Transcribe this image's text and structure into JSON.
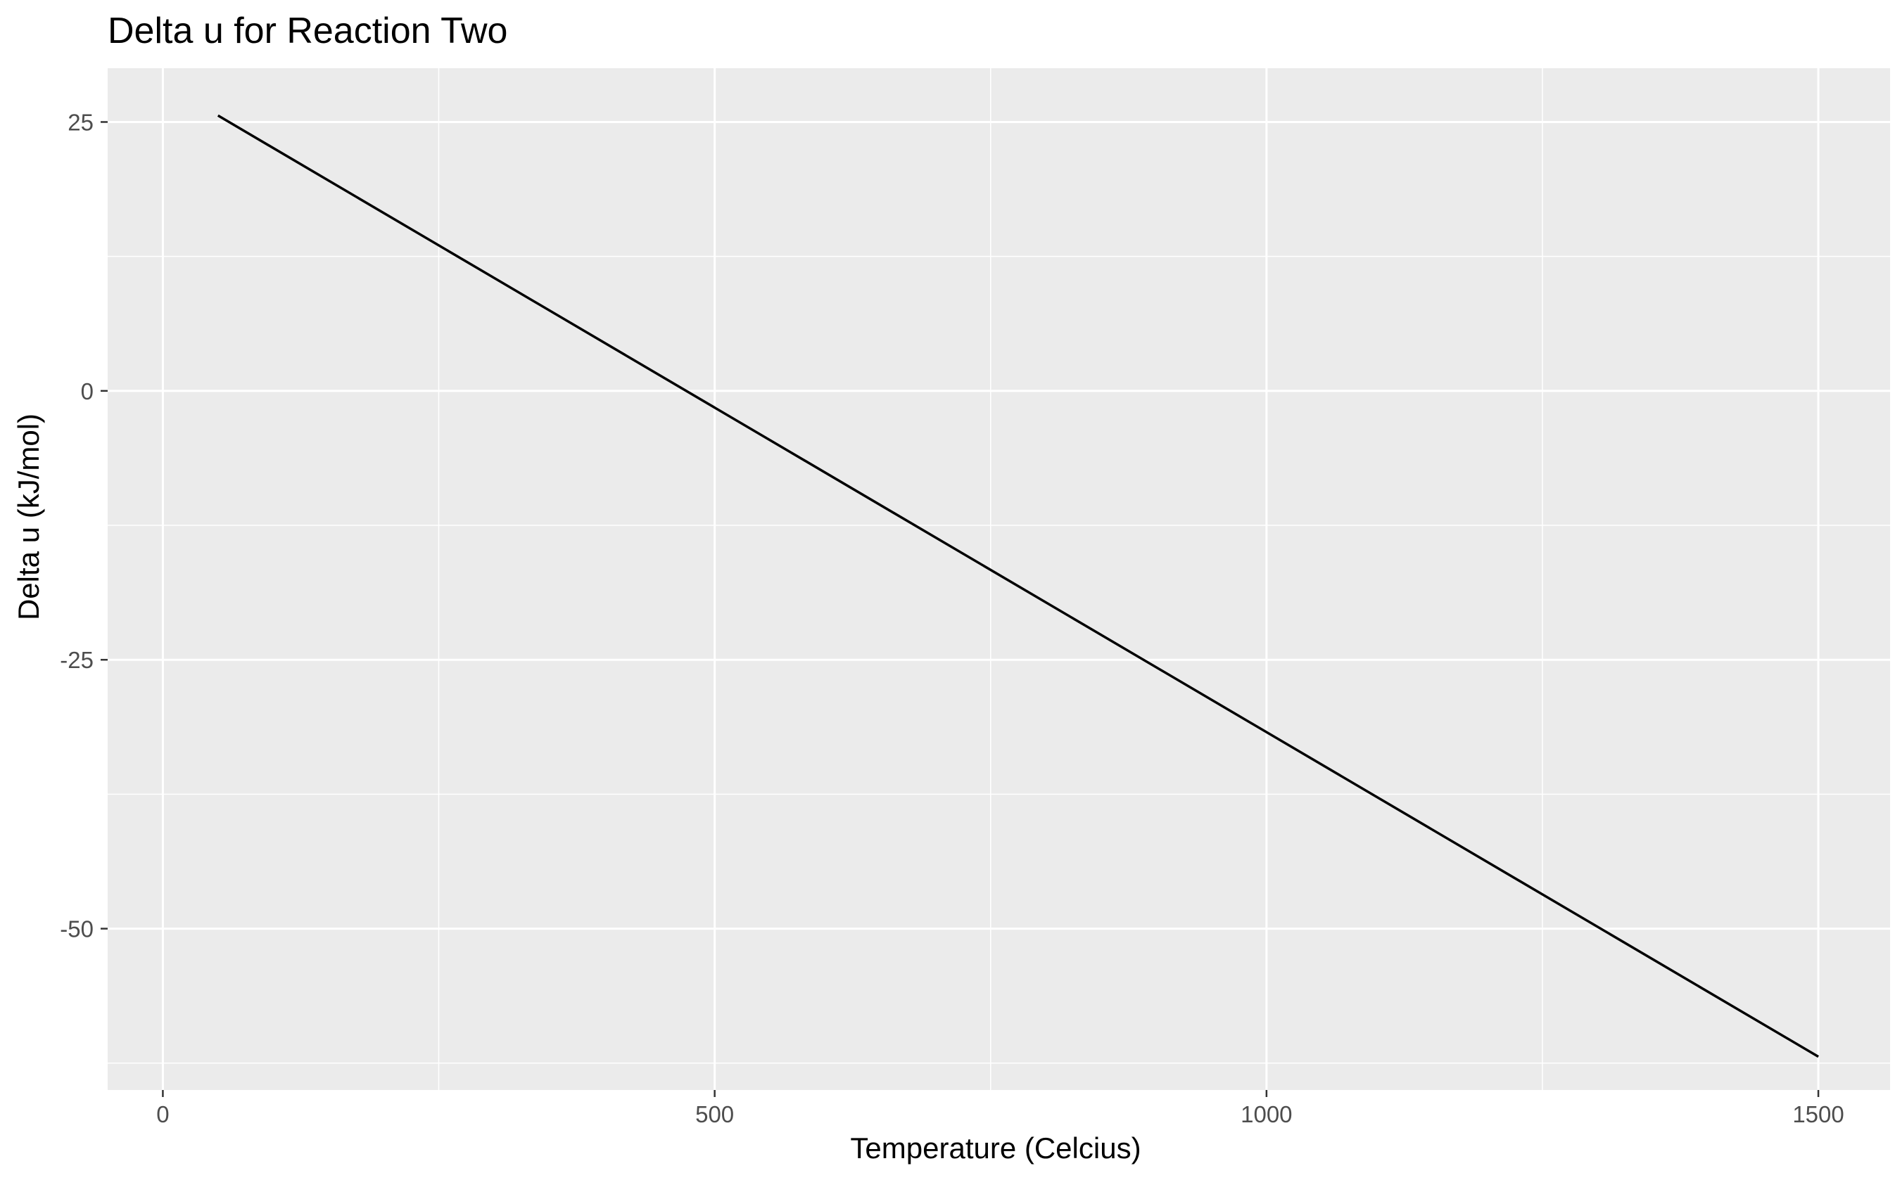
{
  "chart_data": {
    "type": "line",
    "title": "Delta u for Reaction Two",
    "xlabel": "Temperature (Celcius)",
    "ylabel": "Delta u (kJ/mol)",
    "xlim": [
      -50,
      1565
    ],
    "ylim": [
      -65,
      30
    ],
    "x_ticks": [
      0,
      500,
      1000,
      1500
    ],
    "x_tick_labels": [
      "0",
      "500",
      "1000",
      "1500"
    ],
    "x_minor_ticks": [
      250,
      750,
      1250
    ],
    "y_ticks": [
      -50,
      -25,
      0,
      25
    ],
    "y_tick_labels": [
      "-50",
      "-25",
      "0",
      "25"
    ],
    "y_minor_ticks": [
      -62.5,
      -37.5,
      -12.5,
      12.5
    ],
    "grid": true,
    "legend": "none",
    "series": [
      {
        "x": [
          50,
          1500
        ],
        "y": [
          25.6,
          -61.9
        ]
      }
    ],
    "colors": {
      "panel": "#ebebeb",
      "grid": "#ffffff",
      "line": "#000000",
      "tick_text": "#4d4d4d",
      "tick_mark": "#333333"
    }
  }
}
